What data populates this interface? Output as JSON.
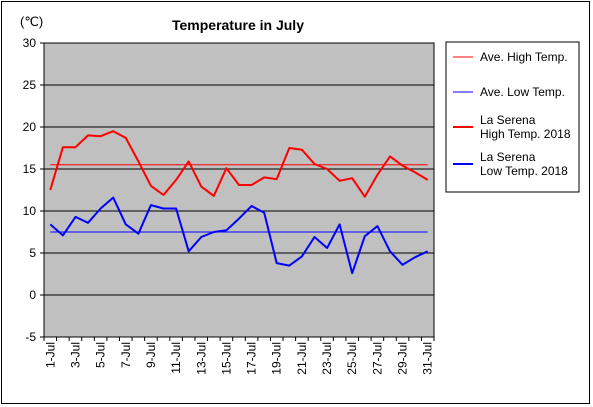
{
  "chart_data": {
    "type": "line",
    "title": "Temperature in July",
    "unit_label": "(℃)",
    "ylim": [
      -5,
      30
    ],
    "y_ticks": [
      -5,
      0,
      5,
      10,
      15,
      20,
      25,
      30
    ],
    "grid": true,
    "legend_position": "right",
    "x": [
      "1-Jul",
      "2-Jul",
      "3-Jul",
      "4-Jul",
      "5-Jul",
      "6-Jul",
      "7-Jul",
      "8-Jul",
      "9-Jul",
      "10-Jul",
      "11-Jul",
      "12-Jul",
      "13-Jul",
      "14-Jul",
      "15-Jul",
      "16-Jul",
      "17-Jul",
      "18-Jul",
      "19-Jul",
      "20-Jul",
      "21-Jul",
      "22-Jul",
      "23-Jul",
      "24-Jul",
      "25-Jul",
      "26-Jul",
      "27-Jul",
      "28-Jul",
      "29-Jul",
      "30-Jul",
      "31-Jul"
    ],
    "x_tick_labels": [
      "1-Jul",
      "3-Jul",
      "5-Jul",
      "7-Jul",
      "9-Jul",
      "11-Jul",
      "13-Jul",
      "15-Jul",
      "17-Jul",
      "19-Jul",
      "21-Jul",
      "23-Jul",
      "25-Jul",
      "27-Jul",
      "29-Jul",
      "31-Jul"
    ],
    "series": [
      {
        "name": "Ave. High Temp.",
        "color": "#ff0000",
        "width": 1,
        "values": [
          15.5,
          15.5,
          15.5,
          15.5,
          15.5,
          15.5,
          15.5,
          15.5,
          15.5,
          15.5,
          15.5,
          15.5,
          15.5,
          15.5,
          15.5,
          15.5,
          15.5,
          15.5,
          15.5,
          15.5,
          15.5,
          15.5,
          15.5,
          15.5,
          15.5,
          15.5,
          15.5,
          15.5,
          15.5,
          15.5,
          15.5
        ]
      },
      {
        "name": "Ave. Low Temp.",
        "color": "#0000ff",
        "width": 1,
        "values": [
          7.5,
          7.5,
          7.5,
          7.5,
          7.5,
          7.5,
          7.5,
          7.5,
          7.5,
          7.5,
          7.5,
          7.5,
          7.5,
          7.5,
          7.5,
          7.5,
          7.5,
          7.5,
          7.5,
          7.5,
          7.5,
          7.5,
          7.5,
          7.5,
          7.5,
          7.5,
          7.5,
          7.5,
          7.5,
          7.5,
          7.5
        ]
      },
      {
        "name": "La Serena\nHigh Temp. 2018",
        "color": "#ff0000",
        "width": 2,
        "values": [
          12.5,
          17.6,
          17.6,
          19.0,
          18.9,
          19.5,
          18.7,
          15.9,
          13.0,
          11.9,
          13.7,
          15.9,
          12.9,
          11.8,
          15.1,
          13.1,
          13.1,
          14.0,
          13.8,
          17.5,
          17.3,
          15.6,
          15.0,
          13.6,
          13.9,
          11.7,
          14.3,
          16.5,
          15.4,
          14.6,
          13.7
        ]
      },
      {
        "name": "La Serena\nLow Temp. 2018",
        "color": "#0000ff",
        "width": 2,
        "values": [
          8.4,
          7.1,
          9.3,
          8.6,
          10.3,
          11.6,
          8.4,
          7.3,
          10.7,
          10.3,
          10.3,
          5.2,
          6.9,
          7.5,
          7.7,
          9.1,
          10.6,
          9.8,
          3.8,
          3.5,
          4.6,
          6.9,
          5.6,
          8.4,
          2.6,
          7.0,
          8.2,
          5.2,
          3.6,
          4.5,
          5.2
        ]
      }
    ]
  }
}
